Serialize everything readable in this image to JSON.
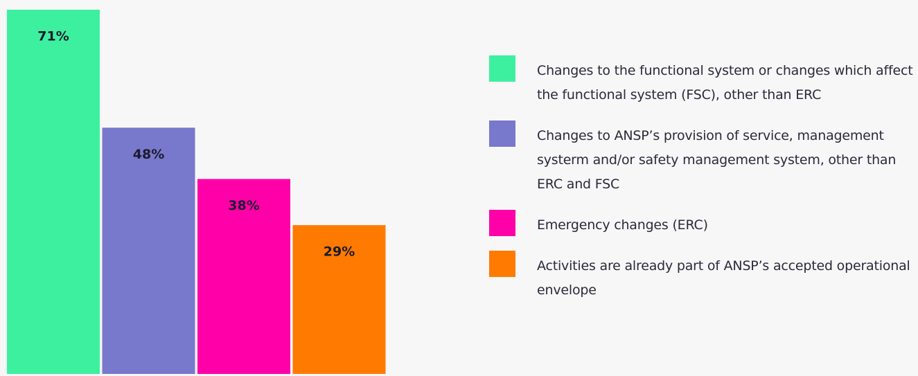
{
  "chart_data": {
    "type": "bar",
    "categories": [
      "Changes to the functional system or changes which affect the functional system (FSC), other than ERC",
      "Changes to ANSP’s provision of service, management systerm and/or safety management system, other than ERC and FSC",
      "Emergency changes (ERC)",
      "Activities are already part of ANSP’s accepted operational envelope"
    ],
    "values": [
      71,
      48,
      38,
      29
    ],
    "value_labels": [
      "71%",
      "48%",
      "38%",
      "29%"
    ],
    "colors": [
      "#3df09f",
      "#7878cc",
      "#ff00a8",
      "#ff7a00"
    ]
  }
}
